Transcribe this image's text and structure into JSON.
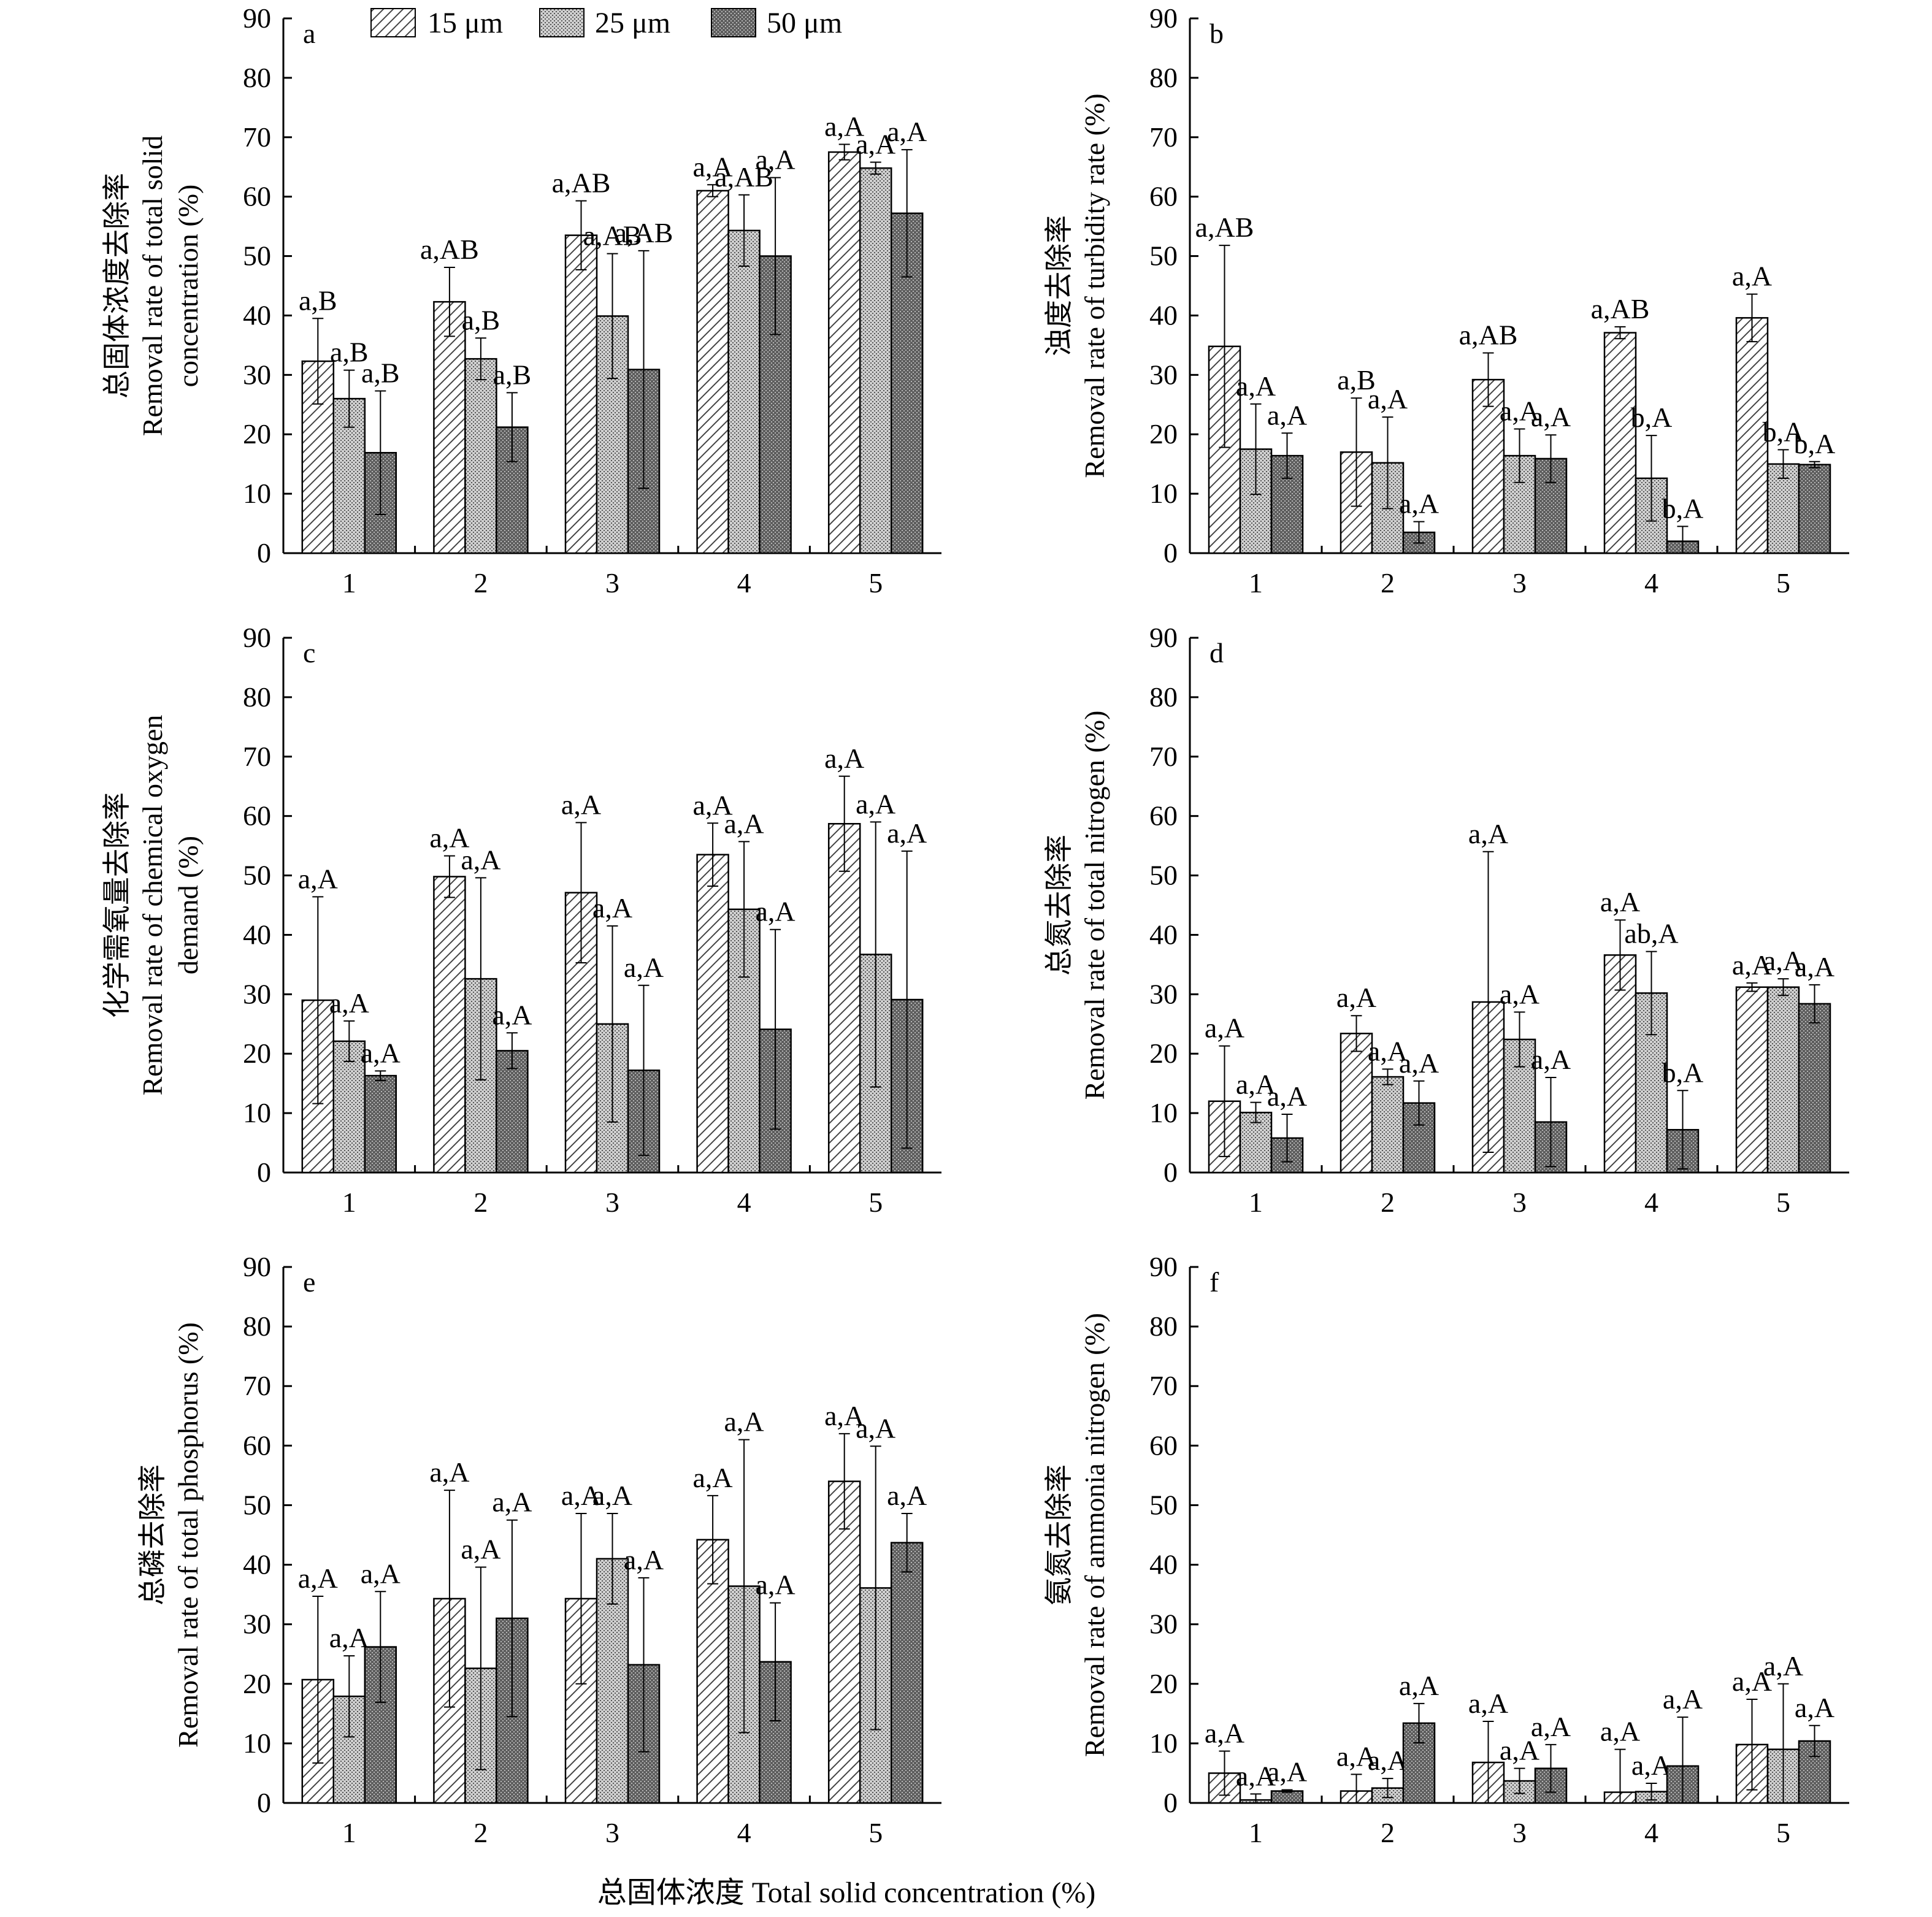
{
  "x_axis_label": "总固体浓度 Total solid concentration (%)",
  "legend": {
    "entries": [
      {
        "label": "15 μm",
        "pattern": "hatch"
      },
      {
        "label": "25 μm",
        "pattern": "dots-light"
      },
      {
        "label": "50 μm",
        "pattern": "dots-dark"
      }
    ]
  },
  "colors": {
    "axis": "#000000",
    "bar_light": "#c8c8c8",
    "bar_dark": "#6e6e6e",
    "hatch_stroke": "#444444"
  },
  "chart_data": [
    {
      "type": "bar",
      "panel": "a",
      "ylabel_cn": "总固体浓度去除率",
      "ylabel_en": [
        "Removal rate of total solid",
        "concentration (%)"
      ],
      "categories": [
        "1",
        "2",
        "3",
        "4",
        "5"
      ],
      "ylim": [
        0,
        90
      ],
      "yticks": [
        0,
        10,
        20,
        30,
        40,
        50,
        60,
        70,
        80,
        90
      ],
      "series": [
        {
          "name": "15 μm",
          "values": [
            32.3,
            42.3,
            53.5,
            61.0,
            67.5
          ],
          "err": [
            7.2,
            5.8,
            5.8,
            1.0,
            1.3
          ],
          "labels": [
            "a,B",
            "a,AB",
            "a,AB",
            "a,A",
            "a,A"
          ]
        },
        {
          "name": "25 μm",
          "values": [
            26.0,
            32.7,
            39.9,
            54.3,
            64.8
          ],
          "err": [
            4.8,
            3.5,
            10.5,
            6.0,
            1.0
          ],
          "labels": [
            "a,B",
            "a,B",
            "a,AB",
            "a,AB",
            "a,A"
          ]
        },
        {
          "name": "50 μm",
          "values": [
            16.9,
            21.2,
            30.9,
            50.0,
            57.2
          ],
          "err": [
            10.4,
            5.8,
            20.0,
            13.2,
            10.7
          ],
          "labels": [
            "a,B",
            "a,B",
            "a,AB",
            "a,A",
            "a,A"
          ]
        }
      ]
    },
    {
      "type": "bar",
      "panel": "b",
      "ylabel_cn": "浊度去除率",
      "ylabel_en": [
        "Removal rate of turbidity rate (%)"
      ],
      "categories": [
        "1",
        "2",
        "3",
        "4",
        "5"
      ],
      "ylim": [
        0,
        90
      ],
      "yticks": [
        0,
        10,
        20,
        30,
        40,
        50,
        60,
        70,
        80,
        90
      ],
      "series": [
        {
          "name": "15 μm",
          "values": [
            34.8,
            17.0,
            29.2,
            37.1,
            39.6
          ],
          "err": [
            17.0,
            9.1,
            4.5,
            1.0,
            4.0
          ],
          "labels": [
            "a,AB",
            "a,B",
            "a,AB",
            "a,AB",
            "a,A"
          ]
        },
        {
          "name": "25 μm",
          "values": [
            17.5,
            15.2,
            16.4,
            12.6,
            15.0
          ],
          "err": [
            7.6,
            7.7,
            4.5,
            7.2,
            2.4
          ],
          "labels": [
            "a,A",
            "a,A",
            "a,A",
            "b,A",
            "b,A"
          ]
        },
        {
          "name": "50 μm",
          "values": [
            16.4,
            3.5,
            15.9,
            2.0,
            14.9
          ],
          "err": [
            3.8,
            1.8,
            4.0,
            2.5,
            0.5
          ],
          "labels": [
            "a,A",
            "a,A",
            "a,A",
            "b,A",
            "b,A"
          ]
        }
      ]
    },
    {
      "type": "bar",
      "panel": "c",
      "ylabel_cn": "化学需氧量去除率",
      "ylabel_en": [
        "Removal rate of chemical oxygen",
        "demand (%)"
      ],
      "categories": [
        "1",
        "2",
        "3",
        "4",
        "5"
      ],
      "ylim": [
        0,
        90
      ],
      "yticks": [
        0,
        10,
        20,
        30,
        40,
        50,
        60,
        70,
        80,
        90
      ],
      "series": [
        {
          "name": "15 μm",
          "values": [
            29.0,
            49.8,
            47.1,
            53.5,
            58.7
          ],
          "err": [
            17.4,
            3.5,
            11.8,
            5.3,
            8.0
          ],
          "labels": [
            "a,A",
            "a,A",
            "a,A",
            "a,A",
            "a,A"
          ]
        },
        {
          "name": "25 μm",
          "values": [
            22.1,
            32.6,
            25.0,
            44.3,
            36.7
          ],
          "err": [
            3.4,
            17.0,
            16.5,
            11.4,
            22.3
          ],
          "labels": [
            "a,A",
            "a,A",
            "a,A",
            "a,A",
            "a,A"
          ]
        },
        {
          "name": "50 μm",
          "values": [
            16.3,
            20.5,
            17.2,
            24.1,
            29.1
          ],
          "err": [
            0.8,
            3.0,
            14.3,
            16.8,
            25.0
          ],
          "labels": [
            "a,A",
            "a,A",
            "a,A",
            "a,A",
            "a,A"
          ]
        }
      ]
    },
    {
      "type": "bar",
      "panel": "d",
      "ylabel_cn": "总氮去除率",
      "ylabel_en": [
        "Removal rate of total nitrogen (%)"
      ],
      "categories": [
        "1",
        "2",
        "3",
        "4",
        "5"
      ],
      "ylim": [
        0,
        90
      ],
      "yticks": [
        0,
        10,
        20,
        30,
        40,
        50,
        60,
        70,
        80,
        90
      ],
      "series": [
        {
          "name": "15 μm",
          "values": [
            12.0,
            23.4,
            28.7,
            36.6,
            31.2
          ],
          "err": [
            9.3,
            3.0,
            25.3,
            5.9,
            0.7
          ],
          "labels": [
            "a,A",
            "a,A",
            "a,A",
            "a,A",
            "a,A"
          ]
        },
        {
          "name": "25 μm",
          "values": [
            10.1,
            16.1,
            22.4,
            30.2,
            31.2
          ],
          "err": [
            1.7,
            1.3,
            4.6,
            7.0,
            1.4
          ],
          "labels": [
            "a,A",
            "a,A",
            "a,A",
            "ab,A",
            "a,A"
          ]
        },
        {
          "name": "50 μm",
          "values": [
            5.8,
            11.7,
            8.5,
            7.2,
            28.4
          ],
          "err": [
            4.0,
            3.7,
            7.5,
            6.6,
            3.2
          ],
          "labels": [
            "a,A",
            "a,A",
            "a,A",
            "b,A",
            "a,A"
          ]
        }
      ]
    },
    {
      "type": "bar",
      "panel": "e",
      "ylabel_cn": "总磷去除率",
      "ylabel_en": [
        "Removal rate of total phosphorus (%)"
      ],
      "categories": [
        "1",
        "2",
        "3",
        "4",
        "5"
      ],
      "ylim": [
        0,
        90
      ],
      "yticks": [
        0,
        10,
        20,
        30,
        40,
        50,
        60,
        70,
        80,
        90
      ],
      "series": [
        {
          "name": "15 μm",
          "values": [
            20.7,
            34.3,
            34.3,
            44.2,
            54.0
          ],
          "err": [
            14.0,
            18.2,
            14.3,
            7.4,
            8.0
          ],
          "labels": [
            "a,A",
            "a,A",
            "a,A",
            "a,A",
            "a,A"
          ]
        },
        {
          "name": "25 μm",
          "values": [
            17.9,
            22.6,
            41.0,
            36.4,
            36.1
          ],
          "err": [
            6.8,
            17.0,
            7.6,
            24.6,
            23.8
          ],
          "labels": [
            "a,A",
            "a,A",
            "a,A",
            "a,A",
            "a,A"
          ]
        },
        {
          "name": "50 μm",
          "values": [
            26.2,
            31.0,
            23.2,
            23.7,
            43.7
          ],
          "err": [
            9.3,
            16.5,
            14.6,
            9.9,
            4.9
          ],
          "labels": [
            "a,A",
            "a,A",
            "a,A",
            "a,A",
            "a,A"
          ]
        }
      ]
    },
    {
      "type": "bar",
      "panel": "f",
      "ylabel_cn": "氨氮去除率",
      "ylabel_en": [
        "Removal rate of ammonia nitrogen (%)"
      ],
      "categories": [
        "1",
        "2",
        "3",
        "4",
        "5"
      ],
      "ylim": [
        0,
        90
      ],
      "yticks": [
        0,
        10,
        20,
        30,
        40,
        50,
        60,
        70,
        80,
        90
      ],
      "series": [
        {
          "name": "15 μm",
          "values": [
            5.0,
            2.0,
            6.8,
            1.8,
            9.8
          ],
          "err": [
            3.7,
            2.8,
            6.9,
            7.2,
            7.6
          ],
          "labels": [
            "a,A",
            "a,A",
            "a,A",
            "a,A",
            "a,A"
          ]
        },
        {
          "name": "25 μm",
          "values": [
            0.5,
            2.5,
            3.7,
            1.9,
            9.0
          ],
          "err": [
            1.0,
            1.6,
            2.1,
            1.4,
            11.0
          ],
          "labels": [
            "a,A",
            "a,A",
            "a,A",
            "a,A",
            "a,A"
          ]
        },
        {
          "name": "50 μm",
          "values": [
            2.0,
            13.4,
            5.8,
            6.2,
            10.4
          ],
          "err": [
            0.2,
            3.3,
            4.0,
            8.2,
            2.6
          ],
          "labels": [
            "a,A",
            "a,A",
            "a,A",
            "a,A",
            "a,A"
          ]
        }
      ]
    }
  ]
}
